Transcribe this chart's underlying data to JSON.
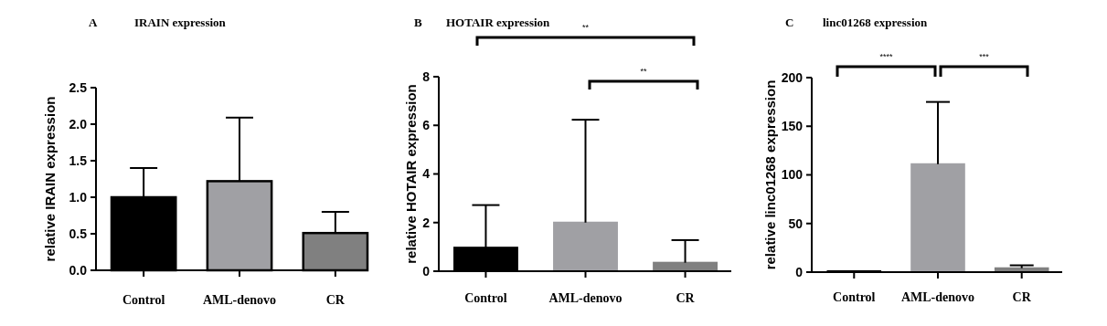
{
  "chart_data": [
    {
      "type": "bar",
      "title": "IRAIN expression",
      "ylabel": "relative IRAIN expression",
      "categories": [
        "Control",
        "AML-denovo",
        "CR"
      ],
      "values": [
        1.0,
        1.22,
        0.51
      ],
      "errors": [
        [
          1.0,
          1.4
        ],
        [
          1.22,
          2.09
        ],
        [
          0.51,
          0.8
        ]
      ],
      "colors": [
        "#000000",
        "#a0a0a4",
        "#808080"
      ],
      "ylim": [
        0,
        2.5
      ],
      "yticks": [
        {
          "value": 0,
          "label": "0.0"
        },
        {
          "value": 0.5,
          "label": "0.5"
        },
        {
          "value": 1,
          "label": "1.0"
        },
        {
          "value": 1.5,
          "label": "1.5"
        },
        {
          "value": 2,
          "label": "2.0"
        },
        {
          "value": 2.5,
          "label": "2.5"
        }
      ],
      "annotations": [
        "A"
      ]
    },
    {
      "type": "bar",
      "title": "HOTAIR expression",
      "ylabel": "relative HOTAIR expression",
      "categories": [
        "Control",
        "AML-denovo",
        "CR"
      ],
      "values": [
        0.97,
        2.0,
        0.35
      ],
      "errors": [
        [
          0.97,
          2.72
        ],
        [
          2.0,
          6.23
        ],
        [
          0.35,
          1.28
        ]
      ],
      "colors": [
        "#000000",
        "#a0a0a4",
        "#808080"
      ],
      "ylim": [
        0,
        8
      ],
      "yticks": [
        0,
        2,
        4,
        6,
        8
      ],
      "annotations": [
        "B",
        "**",
        "**"
      ]
    },
    {
      "type": "bar",
      "title": "linc01268 expression",
      "ylabel": "relative linc01268 expression",
      "categories": [
        "Control",
        "AML-denovo",
        "CR"
      ],
      "values": [
        1,
        111,
        4
      ],
      "errors": [
        null,
        [
          111,
          175
        ],
        [
          4,
          7
        ]
      ],
      "colors": [
        "#000000",
        "#a0a0a4",
        "#808080"
      ],
      "ylim": [
        0,
        200
      ],
      "yticks": [
        0,
        50,
        100,
        150,
        200
      ],
      "annotations": [
        "C",
        "****",
        "***"
      ]
    }
  ]
}
